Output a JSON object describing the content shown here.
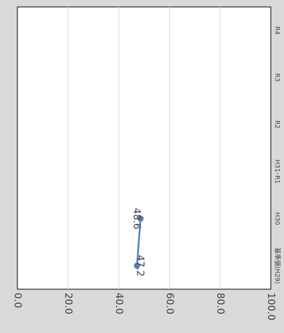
{
  "chart_data": {
    "type": "line",
    "orientation": "rotated-90-clockwise",
    "categories": [
      "基準値(H29)",
      "H30",
      "H31･R1",
      "R2",
      "R3",
      "R4"
    ],
    "series": [
      {
        "values": [
          47.2,
          48.6,
          null,
          null,
          null,
          null
        ]
      }
    ],
    "value_tick_labels": [
      "0.0",
      "20.0",
      "40.0",
      "60.0",
      "80.0",
      "100.0"
    ],
    "ylim": [
      0,
      100
    ],
    "grid": true,
    "title": "",
    "xlabel": "",
    "ylabel": "",
    "colors": {
      "line": "#4f81bd",
      "grid": "#d9d9d9",
      "plot_border": "#000000",
      "frame_background": "#d9d9d9",
      "plot_background": "#ffffff",
      "text": "#404040"
    }
  }
}
